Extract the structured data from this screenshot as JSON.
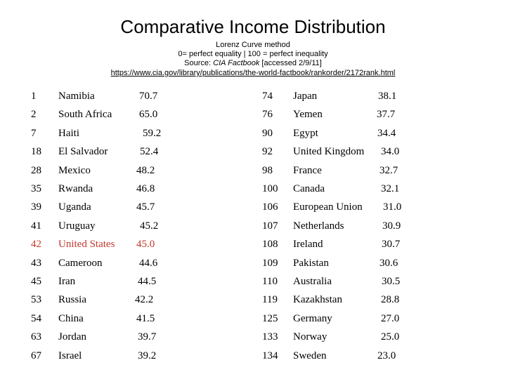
{
  "header": {
    "title": "Comparative Income Distribution",
    "method": "Lorenz Curve method",
    "scale": "0= perfect equality | 100 = perfect inequality",
    "source_prefix": "Source: ",
    "source_name": "CIA Factbook",
    "source_suffix": " [accessed 2/9/11]",
    "url": "https://www.cia.gov/library/publications/the-world-factbook/rankorder/2172rank.html"
  },
  "highlight_color": "#c0392b",
  "rows": [
    {
      "left": {
        "rank": "1",
        "country": "Namibia",
        "value": "70.7"
      },
      "right": {
        "rank": "74",
        "country": "Japan",
        "value": "38.1"
      }
    },
    {
      "left": {
        "rank": "2",
        "country": "South Africa",
        "value": "65.0"
      },
      "right": {
        "rank": "76",
        "country": "Yemen",
        "value": "37.7"
      }
    },
    {
      "left": {
        "rank": "7",
        "country": "Haiti",
        "value": "59.2"
      },
      "right": {
        "rank": "90",
        "country": "Egypt",
        "value": "34.4"
      }
    },
    {
      "left": {
        "rank": "18",
        "country": "El Salvador",
        "value": "52.4"
      },
      "right": {
        "rank": "92",
        "country": "United Kingdom",
        "value": "34.0"
      }
    },
    {
      "left": {
        "rank": "28",
        "country": "Mexico",
        "value": "48.2"
      },
      "right": {
        "rank": "98",
        "country": "France",
        "value": "32.7"
      }
    },
    {
      "left": {
        "rank": "35",
        "country": "Rwanda",
        "value": "46.8"
      },
      "right": {
        "rank": "100",
        "country": "Canada",
        "value": "32.1"
      }
    },
    {
      "left": {
        "rank": "39",
        "country": "Uganda",
        "value": "45.7"
      },
      "right": {
        "rank": "106",
        "country": "European Union",
        "value": "31.0"
      }
    },
    {
      "left": {
        "rank": "41",
        "country": "Uruguay",
        "value": "45.2"
      },
      "right": {
        "rank": "107",
        "country": "Netherlands",
        "value": "30.9"
      }
    },
    {
      "left": {
        "rank": "42",
        "country": "United States",
        "value": "45.0",
        "highlight": true
      },
      "right": {
        "rank": "108",
        "country": "Ireland",
        "value": "30.7"
      }
    },
    {
      "left": {
        "rank": "43",
        "country": "Cameroon",
        "value": "44.6"
      },
      "right": {
        "rank": "109",
        "country": "Pakistan",
        "value": "30.6"
      }
    },
    {
      "left": {
        "rank": "45",
        "country": "Iran",
        "value": "44.5"
      },
      "right": {
        "rank": "110",
        "country": "Australia",
        "value": "30.5"
      }
    },
    {
      "left": {
        "rank": "53",
        "country": "Russia",
        "value": "42.2"
      },
      "right": {
        "rank": "119",
        "country": "Kazakhstan",
        "value": "28.8"
      }
    },
    {
      "left": {
        "rank": "54",
        "country": "China",
        "value": "41.5"
      },
      "right": {
        "rank": "125",
        "country": "Germany",
        "value": "27.0"
      }
    },
    {
      "left": {
        "rank": "63",
        "country": "Jordan",
        "value": "39.7"
      },
      "right": {
        "rank": "133",
        "country": "Norway",
        "value": "25.0"
      }
    },
    {
      "left": {
        "rank": "67",
        "country": "Israel",
        "value": "39.2"
      },
      "right": {
        "rank": "134",
        "country": "Sweden",
        "value": "23.0"
      }
    }
  ]
}
